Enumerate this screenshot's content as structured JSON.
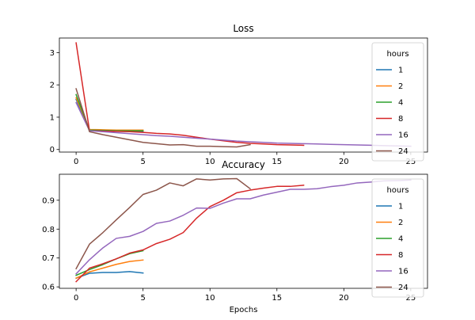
{
  "chart_data": [
    {
      "type": "line",
      "title": "Loss",
      "xlabel": "",
      "ylabel": "",
      "xlim": [
        -1.25,
        26.25
      ],
      "ylim": [
        -0.08,
        3.45
      ],
      "xticks": [
        0,
        5,
        10,
        15,
        20,
        25
      ],
      "yticks": [
        0,
        1,
        2,
        3
      ],
      "legend": {
        "title": "hours",
        "placement": "right"
      },
      "series": [
        {
          "name": "1",
          "color": "#1f77b4",
          "x": [
            0,
            1,
            2,
            3,
            4,
            5
          ],
          "y": [
            1.55,
            0.6,
            0.57,
            0.57,
            0.56,
            0.56
          ]
        },
        {
          "name": "2",
          "color": "#ff7f0e",
          "x": [
            0,
            1,
            2,
            3,
            4,
            5
          ],
          "y": [
            1.6,
            0.62,
            0.61,
            0.6,
            0.6,
            0.6
          ]
        },
        {
          "name": "4",
          "color": "#2ca02c",
          "x": [
            0,
            1,
            2,
            3,
            4,
            5
          ],
          "y": [
            1.7,
            0.6,
            0.59,
            0.58,
            0.58,
            0.58
          ]
        },
        {
          "name": "8",
          "color": "#d62728",
          "x": [
            0,
            1,
            2,
            3,
            4,
            5,
            6,
            7,
            8,
            9,
            10,
            11,
            12,
            13,
            14,
            15,
            16,
            17
          ],
          "y": [
            3.3,
            0.58,
            0.57,
            0.56,
            0.55,
            0.53,
            0.5,
            0.48,
            0.44,
            0.38,
            0.32,
            0.27,
            0.22,
            0.19,
            0.17,
            0.15,
            0.14,
            0.13
          ]
        },
        {
          "name": "16",
          "color": "#9467bd",
          "x": [
            0,
            1,
            2,
            3,
            4,
            5,
            6,
            7,
            8,
            9,
            10,
            11,
            12,
            13,
            14,
            15,
            16,
            17,
            18,
            19,
            20,
            21,
            22,
            23,
            24,
            25
          ],
          "y": [
            1.45,
            0.58,
            0.55,
            0.52,
            0.49,
            0.46,
            0.43,
            0.41,
            0.38,
            0.35,
            0.32,
            0.29,
            0.26,
            0.24,
            0.22,
            0.2,
            0.19,
            0.18,
            0.17,
            0.16,
            0.15,
            0.14,
            0.13,
            0.12,
            0.11,
            0.1
          ]
        },
        {
          "name": "24",
          "color": "#8c564b",
          "x": [
            0,
            1,
            2,
            3,
            4,
            5,
            6,
            7,
            8,
            9,
            10,
            11,
            12,
            13
          ],
          "y": [
            1.88,
            0.55,
            0.46,
            0.38,
            0.3,
            0.22,
            0.18,
            0.14,
            0.15,
            0.1,
            0.1,
            0.09,
            0.08,
            0.15
          ]
        }
      ]
    },
    {
      "type": "line",
      "title": "Accuracy",
      "xlabel": "Epochs",
      "ylabel": "",
      "xlim": [
        -1.25,
        26.25
      ],
      "ylim": [
        0.595,
        0.99
      ],
      "xticks": [
        0,
        5,
        10,
        15,
        20,
        25
      ],
      "yticks": [
        0.6,
        0.7,
        0.8,
        0.9
      ],
      "legend": {
        "title": "hours",
        "placement": "right"
      },
      "series": [
        {
          "name": "1",
          "color": "#1f77b4",
          "x": [
            0,
            1,
            2,
            3,
            4,
            5
          ],
          "y": [
            0.63,
            0.647,
            0.65,
            0.65,
            0.653,
            0.648
          ]
        },
        {
          "name": "2",
          "color": "#ff7f0e",
          "x": [
            0,
            1,
            2,
            3,
            4,
            5
          ],
          "y": [
            0.63,
            0.652,
            0.665,
            0.678,
            0.688,
            0.693
          ]
        },
        {
          "name": "4",
          "color": "#2ca02c",
          "x": [
            0,
            1,
            2,
            3,
            4,
            5
          ],
          "y": [
            0.64,
            0.66,
            0.677,
            0.697,
            0.715,
            0.725
          ]
        },
        {
          "name": "8",
          "color": "#d62728",
          "x": [
            0,
            1,
            2,
            3,
            4,
            5,
            6,
            7,
            8,
            9,
            10,
            11,
            12,
            13,
            14,
            15,
            16,
            17
          ],
          "y": [
            0.618,
            0.665,
            0.68,
            0.697,
            0.717,
            0.728,
            0.75,
            0.765,
            0.788,
            0.838,
            0.878,
            0.9,
            0.926,
            0.935,
            0.942,
            0.948,
            0.948,
            0.952
          ]
        },
        {
          "name": "16",
          "color": "#9467bd",
          "x": [
            0,
            1,
            2,
            3,
            4,
            5,
            6,
            7,
            8,
            9,
            10,
            11,
            12,
            13,
            14,
            15,
            16,
            17,
            18,
            19,
            20,
            21,
            22,
            23,
            24,
            25
          ],
          "y": [
            0.645,
            0.694,
            0.735,
            0.768,
            0.775,
            0.792,
            0.82,
            0.828,
            0.848,
            0.873,
            0.872,
            0.89,
            0.905,
            0.905,
            0.918,
            0.928,
            0.938,
            0.938,
            0.94,
            0.947,
            0.952,
            0.96,
            0.963,
            0.967,
            0.968,
            0.97
          ]
        },
        {
          "name": "24",
          "color": "#8c564b",
          "x": [
            0,
            1,
            2,
            3,
            4,
            5,
            6,
            7,
            8,
            9,
            10,
            11,
            12,
            13
          ],
          "y": [
            0.663,
            0.748,
            0.788,
            0.832,
            0.875,
            0.92,
            0.935,
            0.96,
            0.95,
            0.974,
            0.97,
            0.974,
            0.975,
            0.94
          ]
        }
      ]
    }
  ]
}
